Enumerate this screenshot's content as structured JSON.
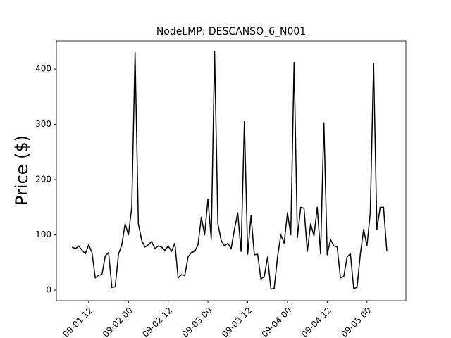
{
  "chart_data": {
    "type": "line",
    "title": "NodeLMP: DESCANSO_6_N001",
    "ylabel": "Price ($)",
    "x": [
      "09-01 07",
      "09-01 08",
      "09-01 09",
      "09-01 10",
      "09-01 11",
      "09-01 12",
      "09-01 13",
      "09-01 14",
      "09-01 15",
      "09-01 16",
      "09-01 17",
      "09-01 18",
      "09-01 19",
      "09-01 20",
      "09-01 21",
      "09-01 22",
      "09-01 23",
      "09-02 00",
      "09-02 01",
      "09-02 02",
      "09-02 03",
      "09-02 04",
      "09-02 05",
      "09-02 06",
      "09-02 07",
      "09-02 08",
      "09-02 09",
      "09-02 10",
      "09-02 11",
      "09-02 12",
      "09-02 13",
      "09-02 14",
      "09-02 15",
      "09-02 16",
      "09-02 17",
      "09-02 18",
      "09-02 19",
      "09-02 20",
      "09-02 21",
      "09-02 22",
      "09-02 23",
      "09-03 00",
      "09-03 01",
      "09-03 02",
      "09-03 03",
      "09-03 04",
      "09-03 05",
      "09-03 06",
      "09-03 07",
      "09-03 08",
      "09-03 09",
      "09-03 10",
      "09-03 11",
      "09-03 12",
      "09-03 13",
      "09-03 14",
      "09-03 15",
      "09-03 16",
      "09-03 17",
      "09-03 18",
      "09-03 19",
      "09-03 20",
      "09-03 21",
      "09-03 22",
      "09-03 23",
      "09-04 00",
      "09-04 01",
      "09-04 02",
      "09-04 03",
      "09-04 04",
      "09-04 05",
      "09-04 06",
      "09-04 07",
      "09-04 08",
      "09-04 09",
      "09-04 10",
      "09-04 11",
      "09-04 12",
      "09-04 13",
      "09-04 14",
      "09-04 15",
      "09-04 16",
      "09-04 17",
      "09-04 18",
      "09-04 19",
      "09-04 20",
      "09-04 21",
      "09-04 22",
      "09-04 23",
      "09-05 00",
      "09-05 01",
      "09-05 02",
      "09-05 03",
      "09-05 04",
      "09-05 05",
      "09-05 06"
    ],
    "series": [
      {
        "name": "Price",
        "color": "#000000",
        "values": [
          78,
          75,
          80,
          72,
          66,
          82,
          68,
          22,
          27,
          28,
          62,
          68,
          5,
          6,
          65,
          82,
          120,
          100,
          150,
          430,
          120,
          90,
          78,
          82,
          88,
          75,
          80,
          78,
          72,
          80,
          70,
          85,
          22,
          28,
          26,
          60,
          68,
          70,
          82,
          132,
          100,
          165,
          92,
          432,
          120,
          90,
          80,
          85,
          75,
          110,
          140,
          70,
          305,
          65,
          135,
          64,
          65,
          20,
          25,
          60,
          2,
          3,
          60,
          100,
          85,
          140,
          100,
          412,
          95,
          150,
          148,
          70,
          120,
          98,
          150,
          66,
          303,
          64,
          92,
          80,
          78,
          22,
          25,
          60,
          66,
          3,
          5,
          65,
          110,
          80,
          140,
          410,
          110,
          150,
          150,
          70
        ]
      }
    ],
    "xlim": [
      "09-01 02:15",
      "09-05 11:45"
    ],
    "xticks": [
      "09-01 12",
      "09-02 00",
      "09-02 12",
      "09-03 00",
      "09-03 12",
      "09-04 00",
      "09-04 12",
      "09-05 00"
    ],
    "ylim": [
      -19,
      451
    ],
    "yticks": [
      0,
      100,
      200,
      300,
      400
    ],
    "grid": false
  }
}
